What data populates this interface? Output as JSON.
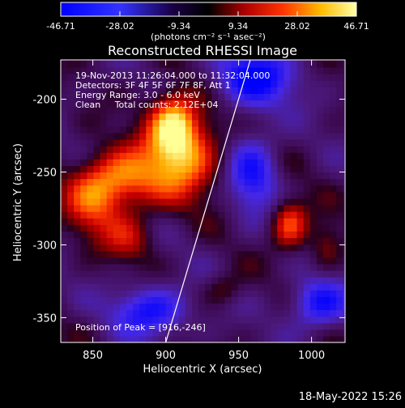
{
  "chart_data": {
    "type": "heatmap",
    "title": "Reconstructed RHESSI Image",
    "xlabel": "Heliocentric X (arcsec)",
    "ylabel": "Heliocentric Y (arcsec)",
    "xlim": [
      828,
      1023
    ],
    "ylim": [
      -367,
      -173
    ],
    "x_ticks": [
      850,
      900,
      950,
      1000
    ],
    "y_ticks": [
      -200,
      -250,
      -300,
      -350
    ],
    "colorbar": {
      "min": -46.71,
      "max": 46.71,
      "ticks": [
        "-46.71",
        "-28.02",
        "-9.34",
        "9.34",
        "28.02",
        "46.71"
      ],
      "units_label": "(photons cm⁻² s⁻¹ asec⁻²)"
    },
    "annotations": {
      "time_range": "19-Nov-2013 11:26:04.000 to 11:32:04.000",
      "detectors": "Detectors: 3F 4F 5F 6F 7F 8F, Att 1",
      "energy": "Energy Range: 3.0 - 6.0 keV",
      "clean_total": "Clean     Total counts: 2.12E+04",
      "peak": "Position of Peak = [916,-246]"
    },
    "peak_position": [
      916,
      -246
    ],
    "limb_line": {
      "x": [
        900,
        958
      ],
      "y": [
        -367,
        -173
      ]
    },
    "hot_spots": [
      {
        "x": 910,
        "y": -235,
        "amp": 46,
        "sx": 18,
        "sy": 22
      },
      {
        "x": 905,
        "y": -215,
        "amp": 30,
        "sx": 10,
        "sy": 14
      },
      {
        "x": 870,
        "y": -255,
        "amp": 34,
        "sx": 18,
        "sy": 14
      },
      {
        "x": 850,
        "y": -270,
        "amp": 26,
        "sx": 14,
        "sy": 18
      },
      {
        "x": 875,
        "y": -295,
        "amp": 18,
        "sx": 12,
        "sy": 12
      },
      {
        "x": 985,
        "y": -285,
        "amp": 34,
        "sx": 9,
        "sy": 12
      },
      {
        "x": 1010,
        "y": -300,
        "amp": 16,
        "sx": 8,
        "sy": 12
      },
      {
        "x": 940,
        "y": -330,
        "amp": 14,
        "sx": 10,
        "sy": 8
      },
      {
        "x": 960,
        "y": -185,
        "amp": -38,
        "sx": 20,
        "sy": 14
      },
      {
        "x": 960,
        "y": -250,
        "amp": -30,
        "sx": 12,
        "sy": 20
      },
      {
        "x": 890,
        "y": -345,
        "amp": -34,
        "sx": 18,
        "sy": 12
      },
      {
        "x": 1005,
        "y": -340,
        "amp": -34,
        "sx": 14,
        "sy": 12
      }
    ]
  },
  "footer": {
    "date": "18-May-2022 15:26"
  }
}
